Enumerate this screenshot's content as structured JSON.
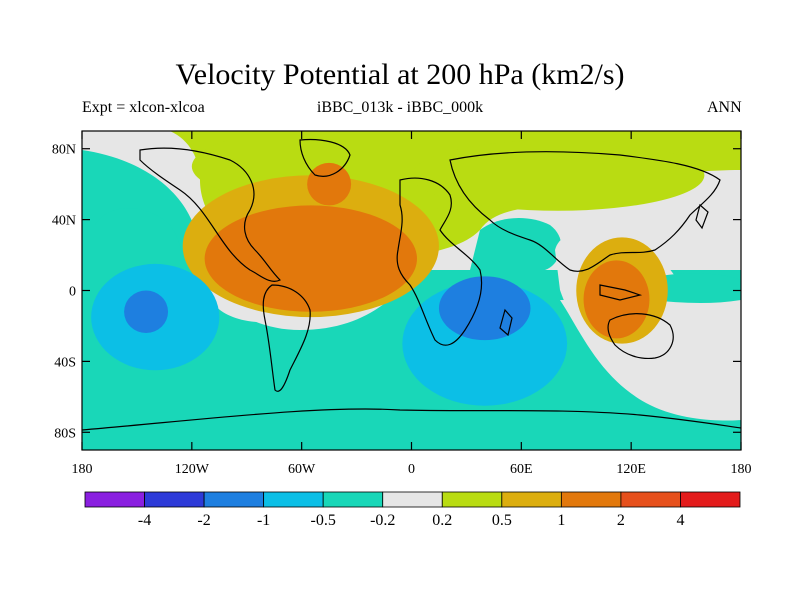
{
  "title": "Velocity Potential at 200 hPa (km2/s)",
  "left_label": "Expt = xlcon-xlcoa",
  "center_label": "iBBC_013k - iBBC_000k",
  "right_label": "ANN",
  "colors": {
    "neg4": "#8a1fe0",
    "neg2": "#2d3ad8",
    "neg1": "#1e7fe0",
    "neg05": "#0cbfe6",
    "neg02": "#19d7b8",
    "zero": "#e6e6e6",
    "pos02": "#b9dc12",
    "pos05": "#dcae0f",
    "pos1": "#e2780c",
    "pos2": "#e6501c",
    "pos4": "#e31b1b",
    "coast": "#000000"
  },
  "map_data": {
    "projection": "cylindrical-equidistant",
    "variable": "Velocity Potential",
    "level": "200 hPa",
    "units": "km2/s",
    "lat_ticks": [
      {
        "lat": 80,
        "label": "80N"
      },
      {
        "lat": 40,
        "label": "40N"
      },
      {
        "lat": 0,
        "label": "0"
      },
      {
        "lat": -40,
        "label": "40S"
      },
      {
        "lat": -80,
        "label": "80S"
      }
    ],
    "lon_ticks": [
      {
        "lon": -180,
        "label": "180"
      },
      {
        "lon": -120,
        "label": "120W"
      },
      {
        "lon": -60,
        "label": "60W"
      },
      {
        "lon": 0,
        "label": "0"
      },
      {
        "lon": 60,
        "label": "60E"
      },
      {
        "lon": 120,
        "label": "120E"
      },
      {
        "lon": 180,
        "label": "180"
      }
    ],
    "regions": [
      {
        "name": "pacific-positive-band",
        "level": "pos02",
        "lon": -20,
        "lat": 70,
        "rlon": 100,
        "rlat": 25
      },
      {
        "name": "asia-positive",
        "level": "pos02",
        "lon": 80,
        "lat": 65,
        "rlon": 80,
        "rlat": 20
      },
      {
        "name": "atlantic-positive-outer",
        "level": "pos05",
        "lon": -55,
        "lat": 25,
        "rlon": 70,
        "rlat": 40
      },
      {
        "name": "atlantic-positive-core",
        "level": "pos1",
        "lon": -55,
        "lat": 18,
        "rlon": 58,
        "rlat": 30
      },
      {
        "name": "indo-pacific-positive-outer",
        "level": "pos05",
        "lon": 115,
        "lat": 0,
        "rlon": 25,
        "rlat": 30
      },
      {
        "name": "indo-pacific-positive-core",
        "level": "pos1",
        "lon": 112,
        "lat": -5,
        "rlon": 18,
        "rlat": 22
      },
      {
        "name": "greenland-positive",
        "level": "pos1",
        "lon": -45,
        "lat": 60,
        "rlon": 12,
        "rlat": 12
      },
      {
        "name": "africa-negative-outer",
        "level": "neg05",
        "lon": 40,
        "lat": -30,
        "rlon": 45,
        "rlat": 35
      },
      {
        "name": "africa-negative-core",
        "level": "neg1",
        "lon": 40,
        "lat": -10,
        "rlon": 25,
        "rlat": 18
      },
      {
        "name": "east-pacific-negative-outer",
        "level": "neg05",
        "lon": -140,
        "lat": -15,
        "rlon": 35,
        "rlat": 30
      },
      {
        "name": "east-pacific-negative-core",
        "level": "neg1",
        "lon": -145,
        "lat": -12,
        "rlon": 12,
        "rlat": 12
      }
    ]
  },
  "colorbar": {
    "levels": [
      "neg4",
      "neg2",
      "neg1",
      "neg05",
      "neg02",
      "zero",
      "pos02",
      "pos05",
      "pos1",
      "pos2",
      "pos4"
    ],
    "labels": [
      "-4",
      "-2",
      "-1",
      "-0.5",
      "-0.2",
      "0.2",
      "0.5",
      "1",
      "2",
      "4"
    ]
  }
}
